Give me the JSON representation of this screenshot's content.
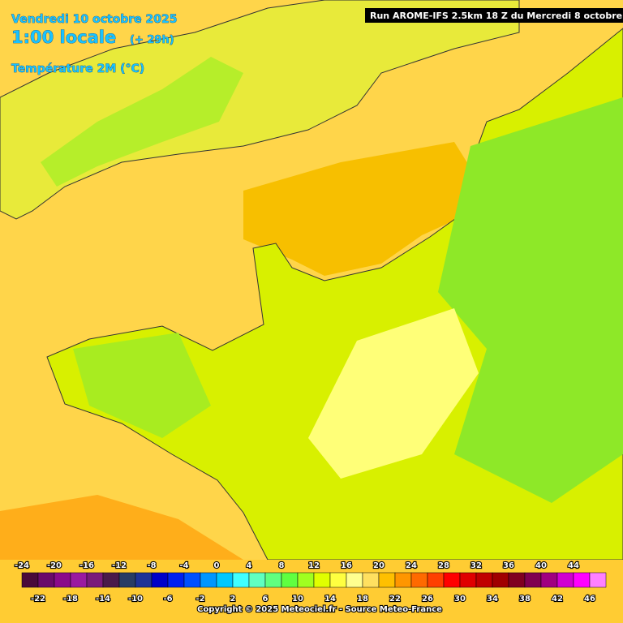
{
  "header": {
    "date": "Vendredi 10 octobre 2025",
    "time": "1:00 locale",
    "lead": "(+ 29h)",
    "parameter": "Température 2M (°C)",
    "run": "Run AROME-IFS 2.5km 18 Z du Mercredi 8 octobre 2025"
  },
  "legend": {
    "steps": [
      {
        "label": -24,
        "color": "#4a0a3a"
      },
      {
        "label": -22,
        "color": "#6a0a6a"
      },
      {
        "label": -20,
        "color": "#8a0a8a"
      },
      {
        "label": -18,
        "color": "#9a1aa0"
      },
      {
        "label": -16,
        "color": "#7a1a7a"
      },
      {
        "label": -14,
        "color": "#4a1a4a"
      },
      {
        "label": -12,
        "color": "#283c64"
      },
      {
        "label": -10,
        "color": "#1e3296"
      },
      {
        "label": -8,
        "color": "#0000c8"
      },
      {
        "label": -6,
        "color": "#0020f0"
      },
      {
        "label": -4,
        "color": "#0050ff"
      },
      {
        "label": -2,
        "color": "#0096ff"
      },
      {
        "label": 0,
        "color": "#00c8ff"
      },
      {
        "label": 2,
        "color": "#40ffff"
      },
      {
        "label": 4,
        "color": "#60ffc0"
      },
      {
        "label": 6,
        "color": "#60ff80"
      },
      {
        "label": 8,
        "color": "#60ff40"
      },
      {
        "label": 10,
        "color": "#a0ff20"
      },
      {
        "label": 12,
        "color": "#e0ff00"
      },
      {
        "label": 14,
        "color": "#ffff40"
      },
      {
        "label": 16,
        "color": "#ffff90"
      },
      {
        "label": 18,
        "color": "#ffe060"
      },
      {
        "label": 20,
        "color": "#ffc000"
      },
      {
        "label": 22,
        "color": "#ff9600"
      },
      {
        "label": 24,
        "color": "#ff6a00"
      },
      {
        "label": 26,
        "color": "#ff4000"
      },
      {
        "label": 28,
        "color": "#ff0000"
      },
      {
        "label": 30,
        "color": "#e00000"
      },
      {
        "label": 32,
        "color": "#c00000"
      },
      {
        "label": 34,
        "color": "#a00000"
      },
      {
        "label": 36,
        "color": "#800020"
      },
      {
        "label": 38,
        "color": "#800050"
      },
      {
        "label": 40,
        "color": "#a00080"
      },
      {
        "label": 42,
        "color": "#d000d0"
      },
      {
        "label": 44,
        "color": "#ff00ff"
      },
      {
        "label": 46,
        "color": "#ff80ff"
      }
    ]
  },
  "footer": {
    "copyright": "Copyright © 2025 Meteociel.fr - Source Meteo-France"
  }
}
